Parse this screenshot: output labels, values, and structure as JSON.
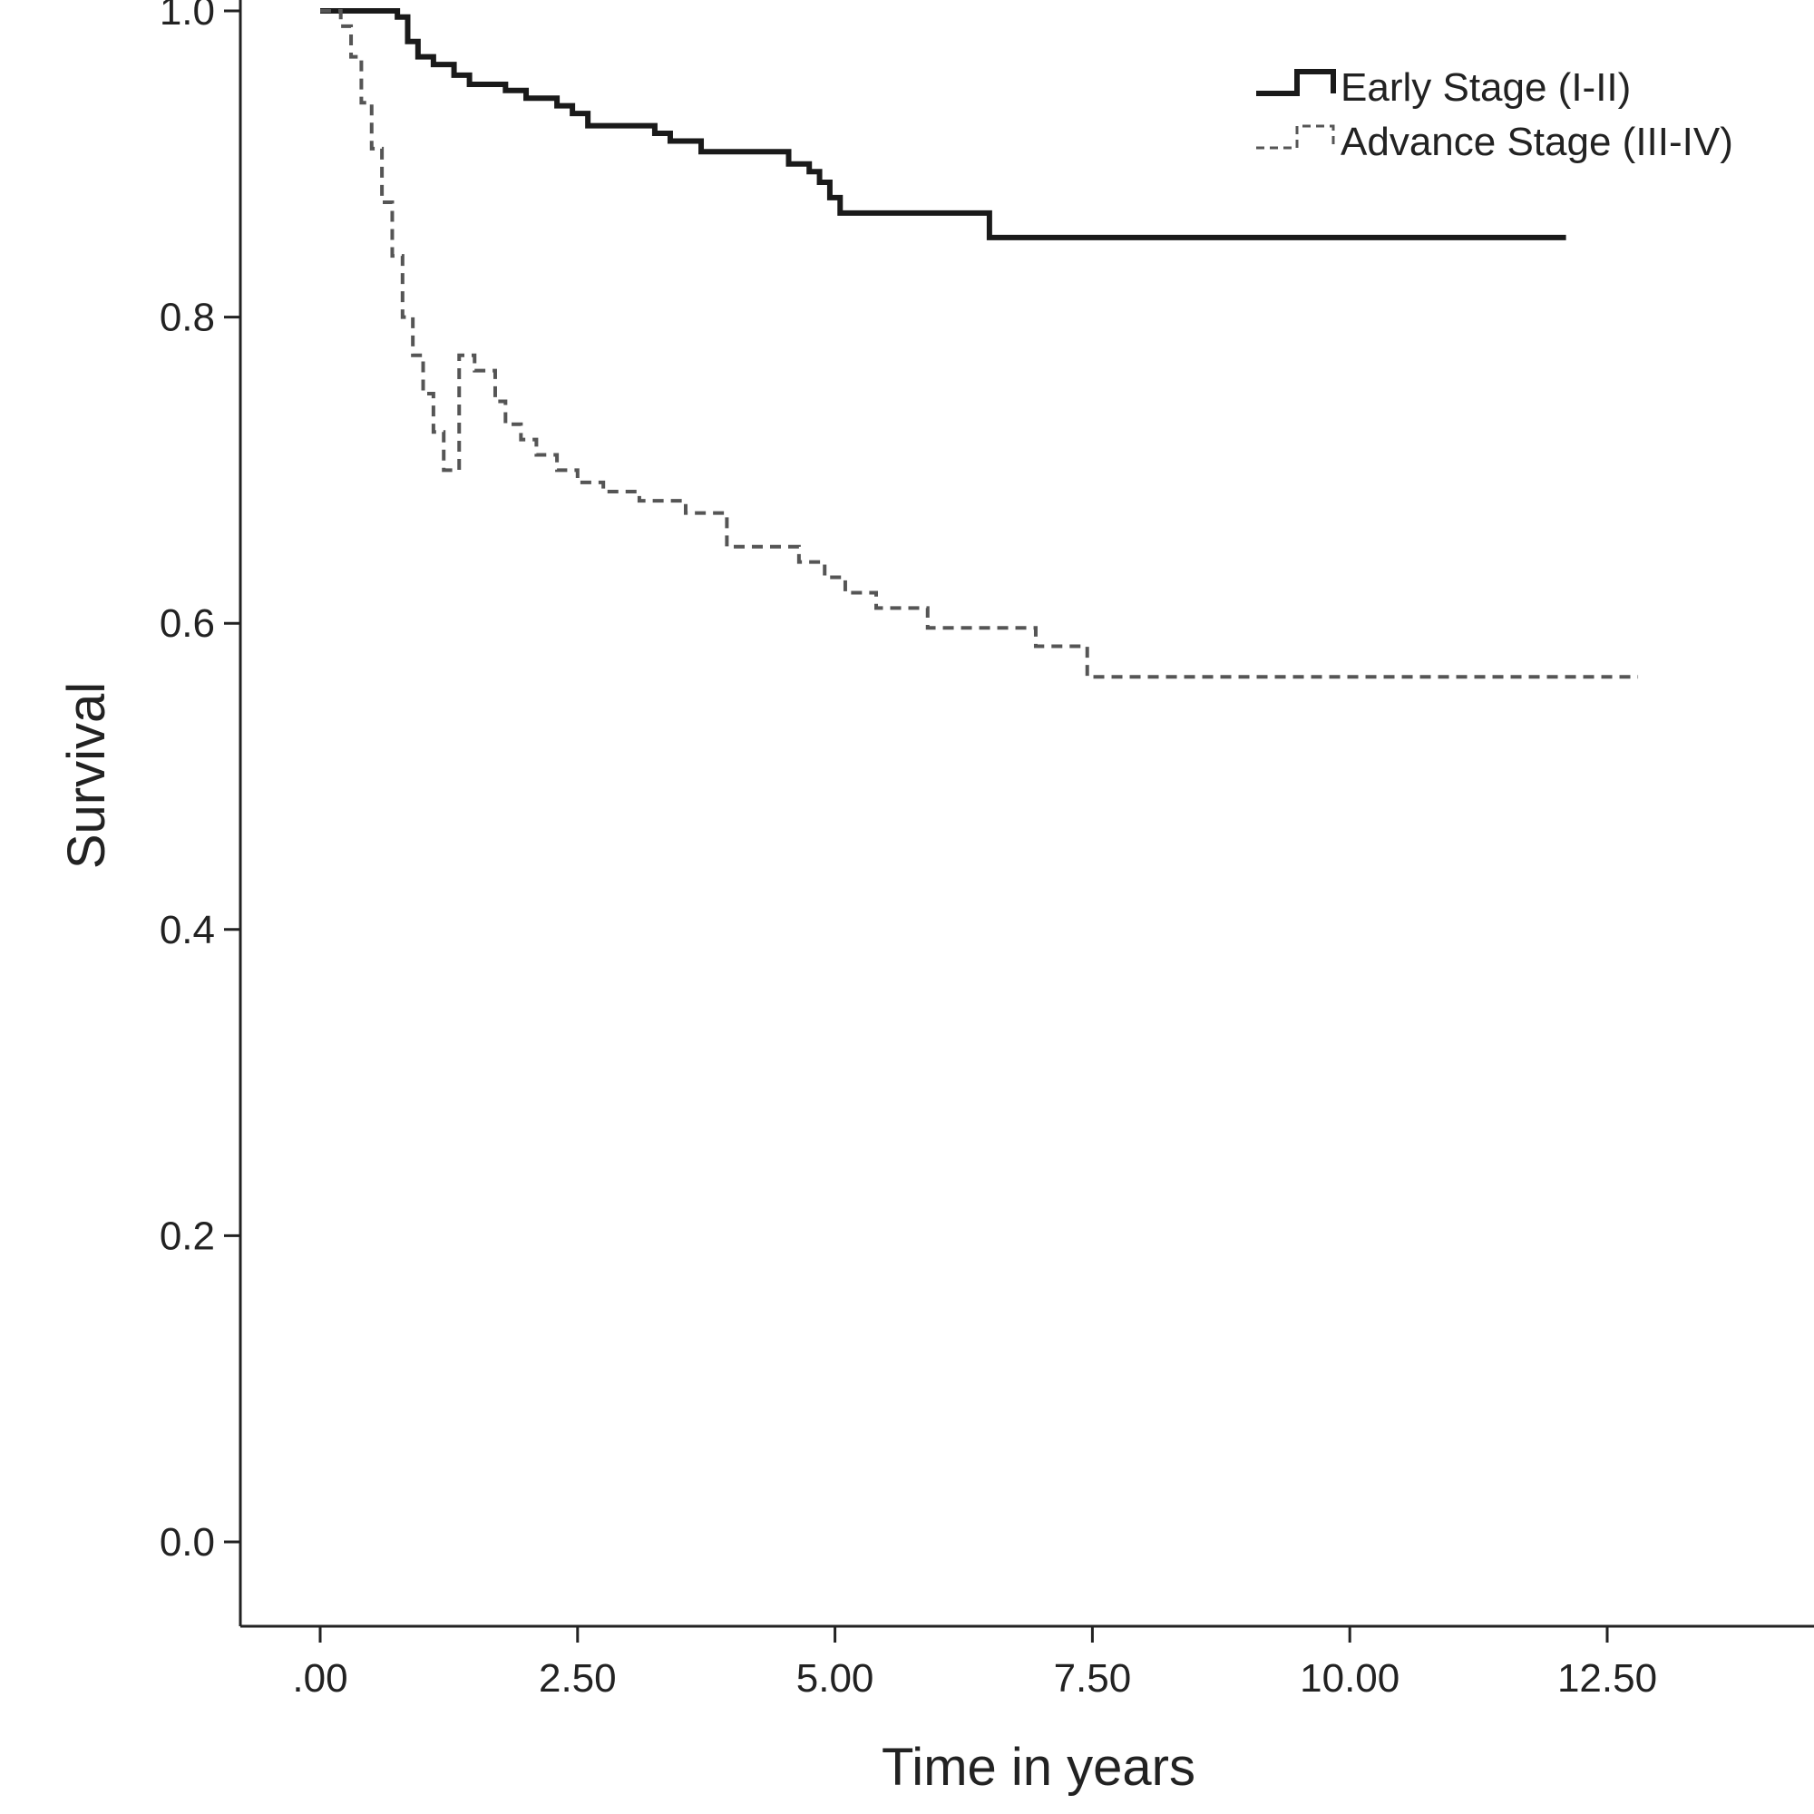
{
  "chart_data": {
    "type": "line",
    "title": "",
    "xlabel": "Time in years",
    "ylabel": "Survival",
    "xlim": [
      -0.38,
      14.4
    ],
    "ylim": [
      -0.055,
      1.0
    ],
    "x_ticks": [
      0,
      2.5,
      5,
      7.5,
      10,
      12.5
    ],
    "x_tick_labels": [
      ".00",
      "2.50",
      "5.00",
      "7.50",
      "10.00",
      "12.50"
    ],
    "y_ticks": [
      0.0,
      0.2,
      0.4,
      0.6,
      0.8,
      1.0
    ],
    "y_tick_labels": [
      "0.0",
      "0.2",
      "0.4",
      "0.6",
      "0.8",
      "1.0"
    ],
    "grid": false,
    "legend_position": "top-right",
    "series": [
      {
        "name": "Early Stage (I-II)",
        "style": "solid",
        "color": "#1a1a1a",
        "step": true,
        "points": [
          [
            0.0,
            1.0
          ],
          [
            0.75,
            0.996
          ],
          [
            0.85,
            0.98
          ],
          [
            0.95,
            0.97
          ],
          [
            1.1,
            0.965
          ],
          [
            1.3,
            0.958
          ],
          [
            1.45,
            0.952
          ],
          [
            1.8,
            0.948
          ],
          [
            2.0,
            0.943
          ],
          [
            2.3,
            0.938
          ],
          [
            2.45,
            0.933
          ],
          [
            2.6,
            0.925
          ],
          [
            3.25,
            0.92
          ],
          [
            3.4,
            0.915
          ],
          [
            3.7,
            0.908
          ],
          [
            4.55,
            0.9
          ],
          [
            4.75,
            0.895
          ],
          [
            4.85,
            0.888
          ],
          [
            4.95,
            0.878
          ],
          [
            5.05,
            0.868
          ],
          [
            6.5,
            0.852
          ],
          [
            12.1,
            0.852
          ]
        ]
      },
      {
        "name": "Advance Stage (III-IV)",
        "style": "dashed",
        "color": "#555555",
        "step": true,
        "points": [
          [
            0.0,
            1.0
          ],
          [
            0.2,
            0.99
          ],
          [
            0.3,
            0.97
          ],
          [
            0.4,
            0.94
          ],
          [
            0.5,
            0.91
          ],
          [
            0.6,
            0.875
          ],
          [
            0.7,
            0.84
          ],
          [
            0.8,
            0.8
          ],
          [
            0.9,
            0.775
          ],
          [
            1.0,
            0.75
          ],
          [
            1.1,
            0.725
          ],
          [
            1.2,
            0.7
          ],
          [
            1.35,
            0.775
          ],
          [
            1.5,
            0.765
          ],
          [
            1.7,
            0.745
          ],
          [
            1.8,
            0.73
          ],
          [
            1.95,
            0.72
          ],
          [
            2.1,
            0.71
          ],
          [
            2.3,
            0.7
          ],
          [
            2.5,
            0.692
          ],
          [
            2.75,
            0.686
          ],
          [
            3.1,
            0.68
          ],
          [
            3.55,
            0.672
          ],
          [
            3.95,
            0.65
          ],
          [
            4.65,
            0.64
          ],
          [
            4.9,
            0.63
          ],
          [
            5.1,
            0.62
          ],
          [
            5.4,
            0.61
          ],
          [
            5.9,
            0.597
          ],
          [
            6.95,
            0.585
          ],
          [
            7.45,
            0.565
          ],
          [
            12.8,
            0.565
          ]
        ]
      }
    ]
  }
}
